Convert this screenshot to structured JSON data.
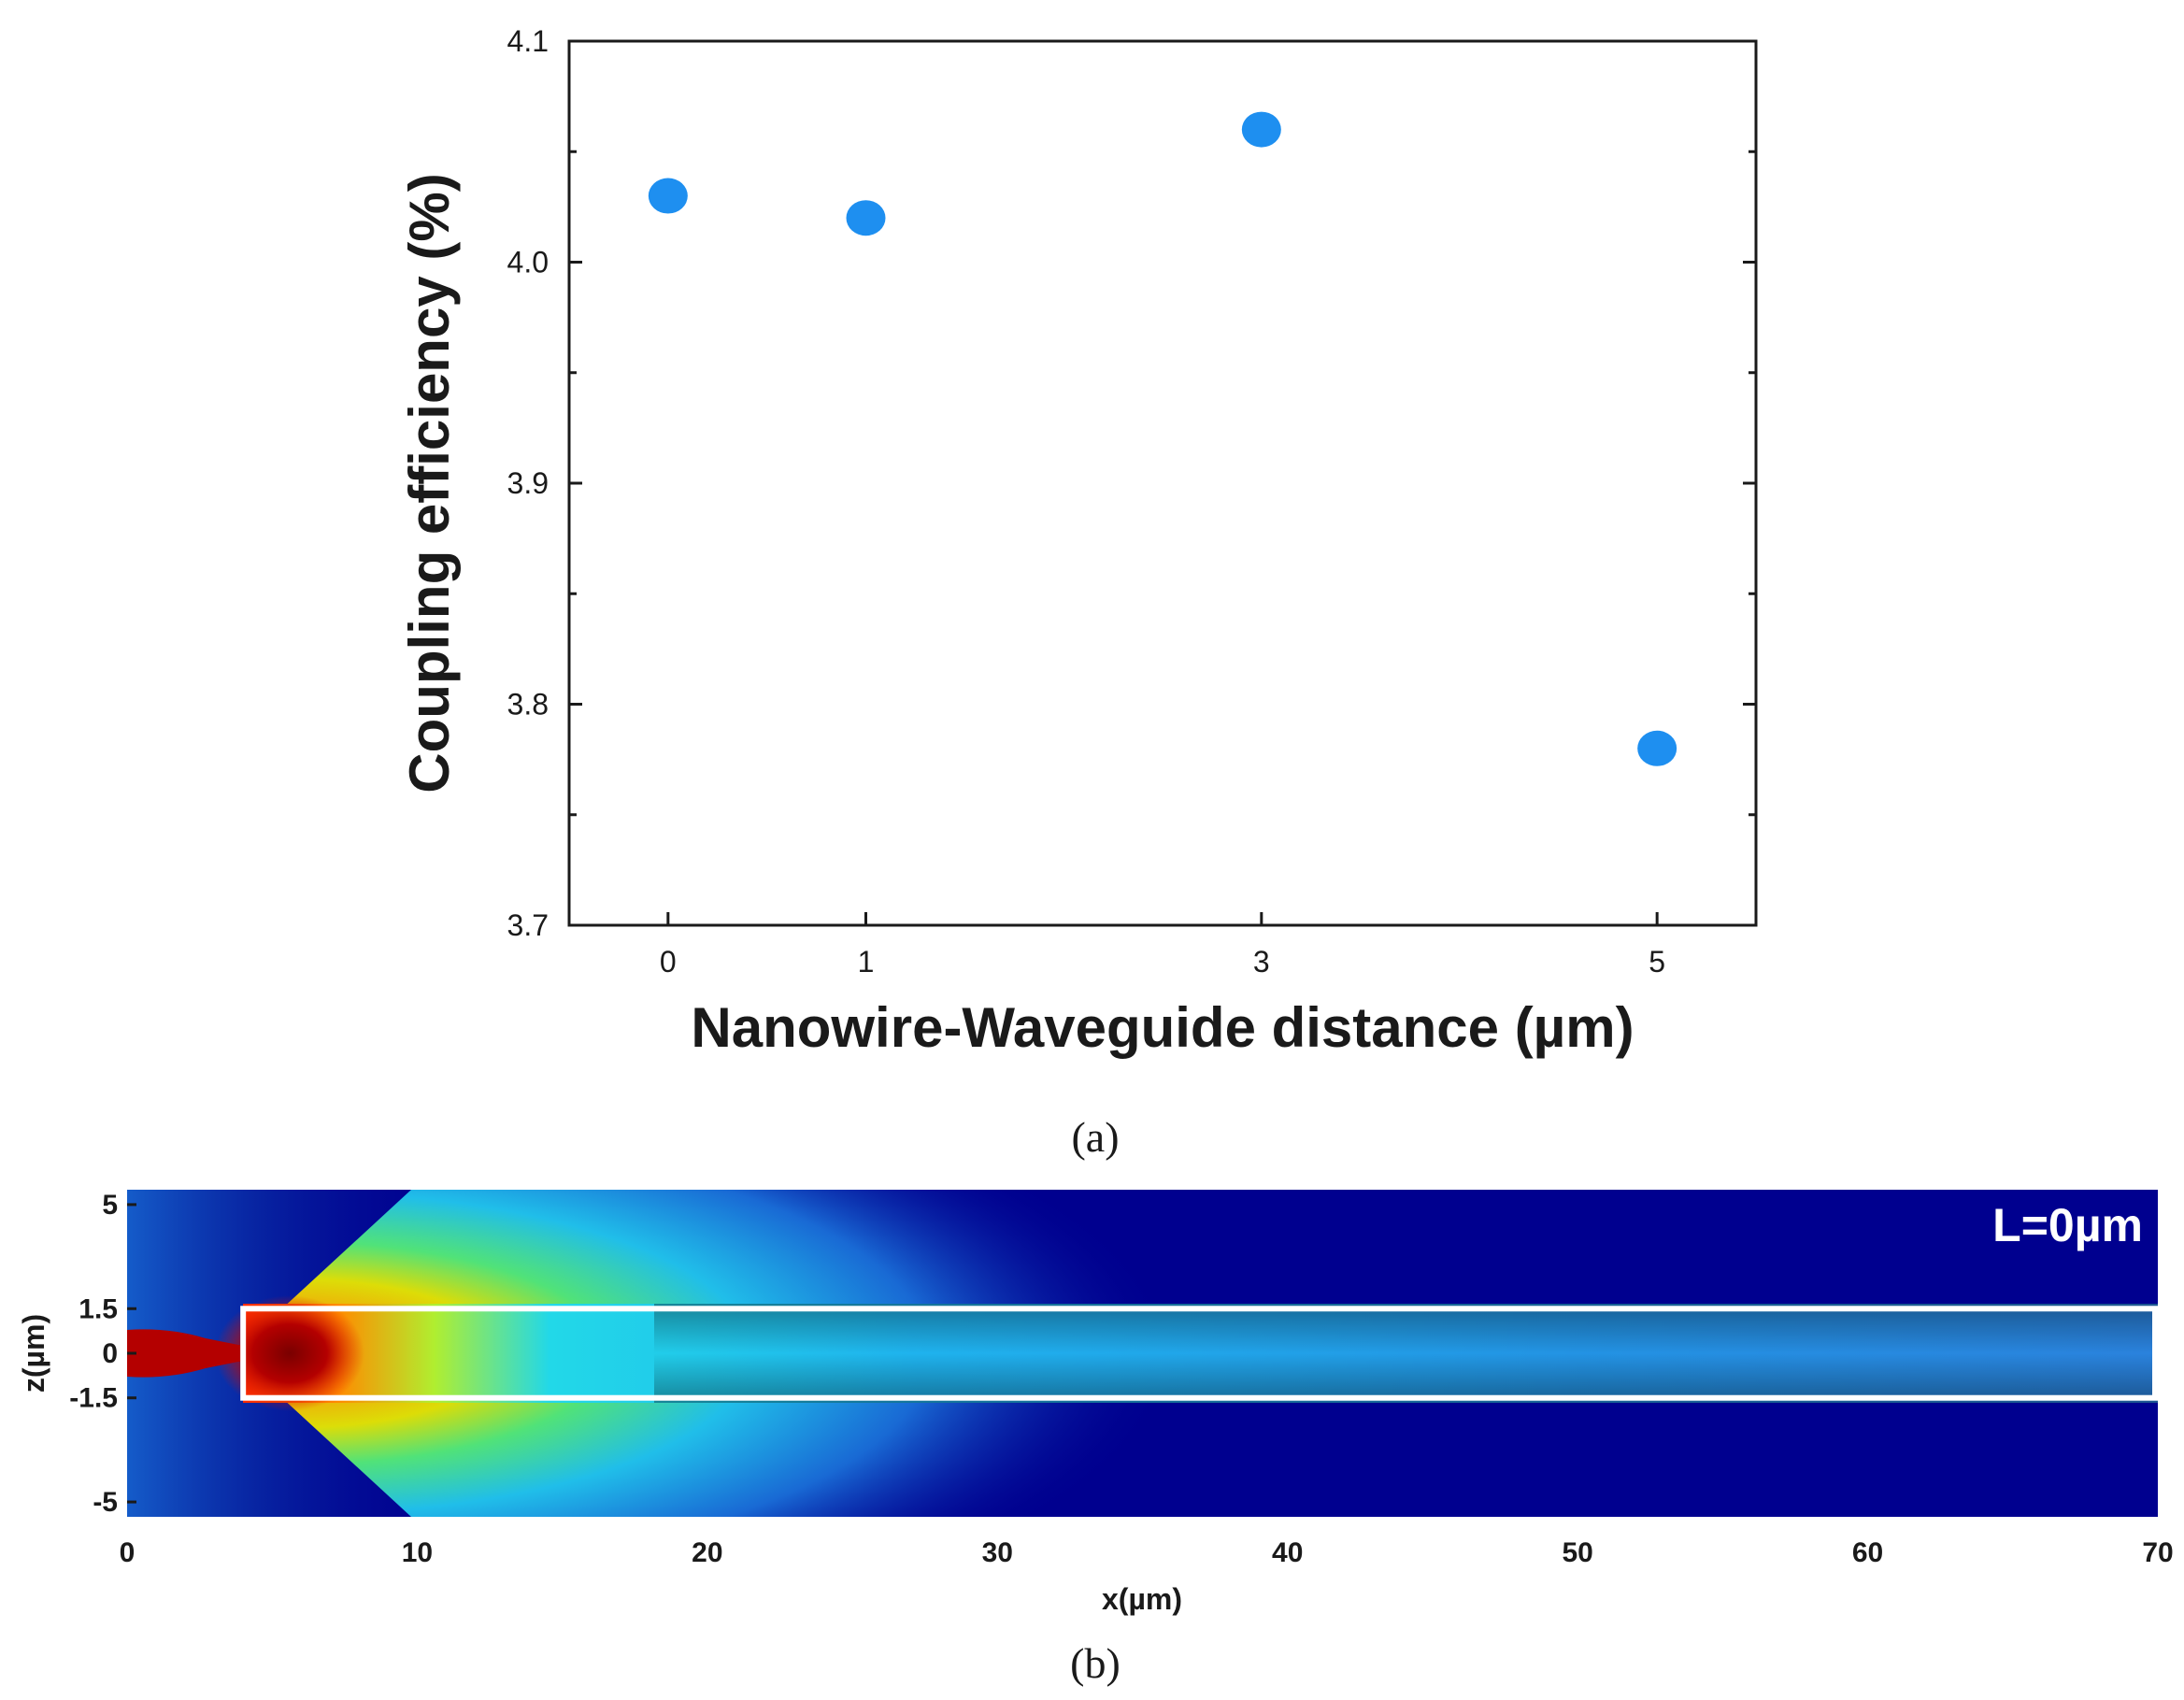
{
  "chart_data": [
    {
      "type": "scatter",
      "panel_label": "(a)",
      "xlabel": "Nanowire-Waveguide distance (µm)",
      "ylabel": "Coupling efficiency (%)",
      "x_ticks": [
        0,
        1,
        3,
        5
      ],
      "y_ticks": [
        "3.7",
        "3.8",
        "3.9",
        "4.0",
        "4.1"
      ],
      "xlim": [
        -0.5,
        5.5
      ],
      "ylim": [
        3.7,
        4.1
      ],
      "marker_color": "#1e8ff0",
      "points": [
        {
          "x": 0,
          "y": 4.03
        },
        {
          "x": 1,
          "y": 4.02
        },
        {
          "x": 3,
          "y": 4.06
        },
        {
          "x": 5,
          "y": 3.78
        }
      ]
    },
    {
      "type": "heatmap",
      "panel_label": "(b)",
      "xlabel": "x(µm)",
      "ylabel": "z(µm)",
      "annotation": "L=0µm",
      "x_ticks": [
        "0",
        "10",
        "20",
        "30",
        "40",
        "50",
        "60",
        "70"
      ],
      "y_ticks": [
        "5",
        "1.5",
        "0",
        "-1.5",
        "-5"
      ],
      "xlim": [
        0,
        70
      ],
      "ylim": [
        -5.5,
        5.5
      ],
      "colormap": "jet",
      "waveguide_outline": {
        "x_start": 4,
        "x_end": 70,
        "z_bottom": -1.5,
        "z_top": 1.5,
        "color": "#ffffff"
      }
    }
  ]
}
